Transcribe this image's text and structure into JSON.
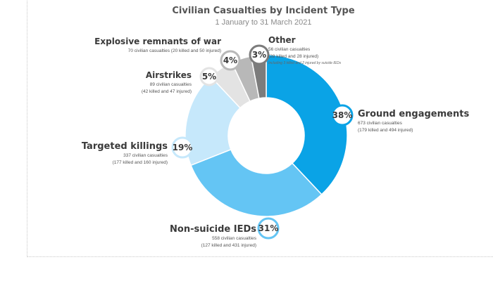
{
  "chart_data": {
    "type": "pie",
    "title": "Civilian Casualties by Incident Type",
    "subtitle": "1 January to 31 March 2021",
    "donut": true,
    "slices": [
      {
        "label": "Ground engagements",
        "value": 38,
        "percent_label": "38%",
        "detail1": "673 civilian casualties",
        "detail2": "(179 killed and 494 injured)",
        "color": "#0aa3e6"
      },
      {
        "label": "Non-suicide IEDs",
        "value": 31,
        "percent_label": "31%",
        "detail1": "558 civilian casualties",
        "detail2": "(127 killed and 431 injured)",
        "color": "#64c5f4"
      },
      {
        "label": "Targeted killings",
        "value": 19,
        "percent_label": "19%",
        "detail1": "337 civilian casualties",
        "detail2": "(177 killed and 160 injured)",
        "color": "#c6e8fb"
      },
      {
        "label": "Airstrikes",
        "value": 5,
        "percent_label": "5%",
        "detail1": "89 civilian casualties",
        "detail2": "(42 killed and 47 injured)",
        "color": "#e3e3e3"
      },
      {
        "label": "Explosive remnants of war",
        "value": 4,
        "percent_label": "4%",
        "detail1": "70 civilian casualties (20 killed and 50 injured)",
        "detail2": "",
        "color": "#b8b8b8"
      },
      {
        "label": "Other",
        "value": 3,
        "percent_label": "3%",
        "detail1": "56 civilian casualties",
        "detail2": "(28 killed and 28 injured)",
        "detail3": "Including 3 killed and 2 injured by suicide IEDs",
        "color": "#7c7c7c"
      }
    ]
  }
}
